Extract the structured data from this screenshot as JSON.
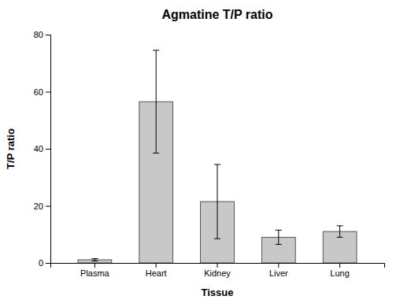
{
  "chart_data": {
    "type": "bar",
    "title": "Agmatine T/P ratio",
    "xlabel": "Tissue",
    "ylabel": "T/P ratio",
    "categories": [
      "Plasma",
      "Heart",
      "Kidney",
      "Liver",
      "Lung"
    ],
    "values": [
      1.1,
      56.5,
      21.5,
      9.0,
      11.0
    ],
    "errors": [
      0.4,
      18.0,
      13.0,
      2.5,
      2.0
    ],
    "color": "#C8C8C8",
    "ylim": [
      0,
      80
    ],
    "yticks": [
      0,
      20,
      40,
      60,
      80
    ],
    "grid": false
  }
}
